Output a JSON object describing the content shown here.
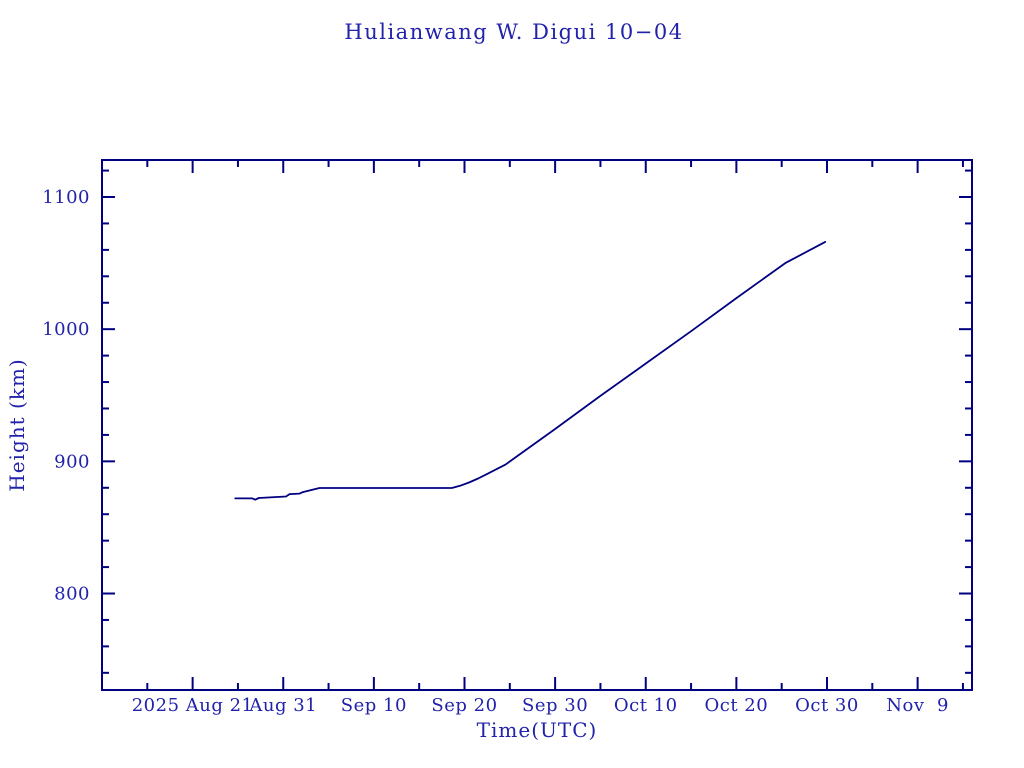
{
  "figure": {
    "background": "#ffffff"
  },
  "chart_data": {
    "type": "line",
    "title": "Hulianwang W. Digui 10−04",
    "xlabel": "Time(UTC)",
    "ylabel": "Height (km)",
    "x_unit": "days since 2025 Aug 11 (UTC)",
    "xlim": [
      0,
      96
    ],
    "ylim": [
      727,
      1128
    ],
    "grid": false,
    "legend": "none",
    "x_major_ticks": [
      {
        "day": 10,
        "label": "2025 Aug 21"
      },
      {
        "day": 20,
        "label": "Aug 31"
      },
      {
        "day": 30,
        "label": "Sep 10"
      },
      {
        "day": 40,
        "label": "Sep 20"
      },
      {
        "day": 50,
        "label": "Sep 30"
      },
      {
        "day": 60,
        "label": "Oct 10"
      },
      {
        "day": 70,
        "label": "Oct 20"
      },
      {
        "day": 80,
        "label": "Oct 30"
      },
      {
        "day": 90,
        "label": "Nov  9"
      }
    ],
    "x_minor_tick_days": [
      5,
      15,
      25,
      35,
      45,
      55,
      65,
      75,
      85,
      95
    ],
    "y_major_ticks": [
      {
        "value": 800,
        "label": "800"
      },
      {
        "value": 900,
        "label": "900"
      },
      {
        "value": 1000,
        "label": "1000"
      },
      {
        "value": 1100,
        "label": "1100"
      }
    ],
    "y_minor_step": 20,
    "colors": {
      "text": "#2222aa",
      "axis": "#000080",
      "line": "#000080",
      "background": "#ffffff"
    },
    "series": [
      {
        "name": "orbit-height",
        "color": "#000080",
        "points_day_km": [
          [
            14.7,
            872.0
          ],
          [
            16.6,
            872.0
          ],
          [
            16.9,
            871.0
          ],
          [
            17.3,
            872.3
          ],
          [
            19.3,
            873.0
          ],
          [
            20.3,
            873.4
          ],
          [
            20.7,
            875.2
          ],
          [
            21.8,
            875.6
          ],
          [
            22.1,
            876.6
          ],
          [
            23.0,
            878.2
          ],
          [
            24.0,
            879.8
          ],
          [
            38.6,
            879.8
          ],
          [
            39.5,
            881.5
          ],
          [
            40.5,
            884.0
          ],
          [
            41.5,
            887.0
          ],
          [
            42.5,
            890.5
          ],
          [
            43.5,
            894.0
          ],
          [
            44.5,
            897.5
          ],
          [
            50.0,
            924.5
          ],
          [
            55.0,
            949.5
          ],
          [
            60.0,
            974.0
          ],
          [
            65.0,
            998.5
          ],
          [
            70.0,
            1023.5
          ],
          [
            75.4,
            1050.0
          ],
          [
            79.8,
            1066.0
          ]
        ]
      }
    ]
  }
}
